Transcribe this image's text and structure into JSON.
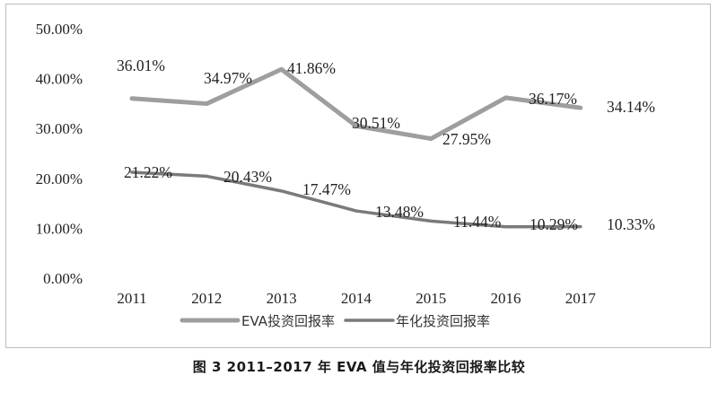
{
  "chart_data": {
    "type": "line",
    "categories": [
      "2011",
      "2012",
      "2013",
      "2014",
      "2015",
      "2016",
      "2017"
    ],
    "ylim": [
      0,
      50
    ],
    "yticks": [
      "0.00%",
      "10.00%",
      "20.00%",
      "30.00%",
      "40.00%",
      "50.00%"
    ],
    "grid": false,
    "legend_position": "bottom",
    "series": [
      {
        "name": "EVA投资回报率",
        "values": [
          36.01,
          34.97,
          41.86,
          30.51,
          27.95,
          36.17,
          34.14
        ],
        "labels": [
          "36.01%",
          "34.97%",
          "41.86%",
          "30.51%",
          "27.95%",
          "36.17%",
          "34.14%"
        ],
        "color": "#9e9e9e"
      },
      {
        "name": "年化投资回报率",
        "values": [
          21.22,
          20.43,
          17.47,
          13.48,
          11.44,
          10.29,
          10.33
        ],
        "labels": [
          "21.22%",
          "20.43%",
          "17.47%",
          "13.48%",
          "11.44%",
          "10.29%",
          "10.33%"
        ],
        "color": "#7a7a7a"
      }
    ]
  },
  "caption": "图 3   2011–2017 年 EVA 值与年化投资回报率比较"
}
